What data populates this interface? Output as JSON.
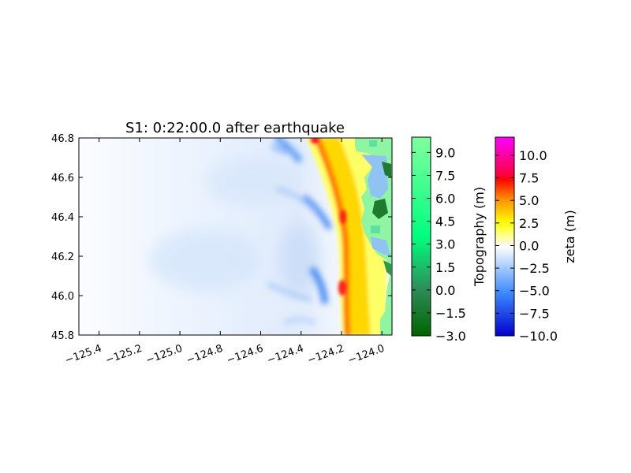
{
  "chart_data": {
    "type": "heatmap",
    "title": "S1: 0:22:00.0 after earthquake",
    "x_ticks": [
      "−125.4",
      "−125.2",
      "−125.0",
      "−124.8",
      "−124.6",
      "−124.4",
      "−124.2",
      "−124.0"
    ],
    "x_tick_values": [
      -125.4,
      -125.2,
      -125.0,
      -124.8,
      -124.6,
      -124.4,
      -124.2,
      -124.0
    ],
    "y_ticks": [
      "46.8",
      "46.6",
      "46.4",
      "46.2",
      "46.0",
      "45.8"
    ],
    "y_tick_values": [
      46.8,
      46.6,
      46.4,
      46.2,
      46.0,
      45.8
    ],
    "xlim": [
      -125.5,
      -123.95
    ],
    "ylim": [
      45.8,
      46.8
    ],
    "colorbars": [
      {
        "label": "Topography (m)",
        "ticks": [
          "9.0",
          "7.5",
          "6.0",
          "4.5",
          "3.0",
          "1.5",
          "0.0",
          "−1.5",
          "−3.0"
        ],
        "tick_values": [
          9.0,
          7.5,
          6.0,
          4.5,
          3.0,
          1.5,
          0.0,
          -1.5,
          -3.0
        ],
        "range": [
          -3.0,
          10.0
        ],
        "colors": [
          "#006400",
          "#2e8b57",
          "#00ff7f",
          "#7fff9f"
        ]
      },
      {
        "label": "zeta (m)",
        "ticks": [
          "10.0",
          "7.5",
          "5.0",
          "2.5",
          "0.0",
          "−2.5",
          "−5.0",
          "−7.5",
          "−10.0"
        ],
        "tick_values": [
          10.0,
          7.5,
          5.0,
          2.5,
          0.0,
          -2.5,
          -5.0,
          -7.5,
          -10.0
        ],
        "range": [
          -10.0,
          12.0
        ],
        "colors": [
          "#0000cc",
          "#3d8cff",
          "#ffffff",
          "#ffff00",
          "#ff8c00",
          "#ff0000",
          "#ff00ff"
        ]
      }
    ]
  }
}
